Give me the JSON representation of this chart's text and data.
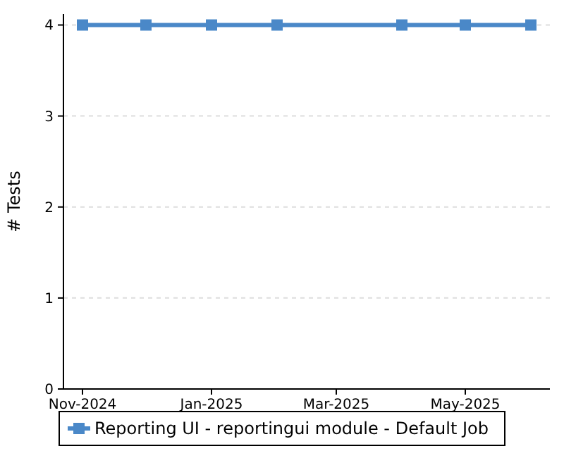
{
  "chart_data": {
    "type": "line",
    "ylabel": "# Tests",
    "x": [
      "2024-11-01",
      "2024-12-01",
      "2025-01-01",
      "2025-02-01",
      "2025-04-01",
      "2025-05-01",
      "2025-06-01"
    ],
    "series": [
      {
        "name": "Reporting UI - reportingui module - Default Job",
        "color": "#4a88c8",
        "values": [
          4,
          4,
          4,
          4,
          4,
          4,
          4
        ]
      }
    ],
    "xlim": [
      "2024-10-23",
      "2025-06-10"
    ],
    "xticks": [
      {
        "value": "2024-11-01",
        "label": "Nov-2024"
      },
      {
        "value": "2025-01-01",
        "label": "Jan-2025"
      },
      {
        "value": "2025-03-01",
        "label": "Mar-2025"
      },
      {
        "value": "2025-05-01",
        "label": "May-2025"
      }
    ],
    "ylim": [
      0,
      4.12
    ],
    "yticks": [
      0,
      1,
      2,
      3,
      4
    ],
    "grid": "y",
    "legend": "bottom",
    "marker": "square",
    "line_style": "solid"
  }
}
